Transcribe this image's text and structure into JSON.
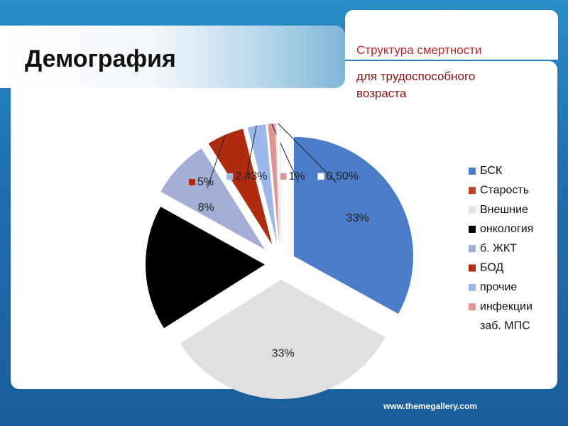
{
  "header": {
    "title": "Демография"
  },
  "footer": "www.themegallery.com",
  "chart_data": {
    "type": "pie",
    "title": "Структура смертности",
    "subtitle": "для трудоспособного возраста",
    "categories": [
      "БСК",
      "Старость",
      "Внешние",
      "онкология",
      "б. ЖКТ",
      "БОД",
      "прочие",
      "инфекции",
      "заб. МПС"
    ],
    "values": [
      33,
      0,
      33,
      17,
      8,
      5,
      2.43,
      1,
      0.5
    ],
    "value_labels": [
      "33%",
      null,
      "33%",
      null,
      "8%",
      "5%",
      "2.43%",
      "1%",
      "0.50%"
    ],
    "colors": [
      "#4a7cc9",
      "#c0402a",
      "#e0e0e0",
      "#000000",
      "#a2aed4",
      "#b02a10",
      "#9ab8ec",
      "#e09494",
      "#ffffff"
    ],
    "legend": "right"
  }
}
